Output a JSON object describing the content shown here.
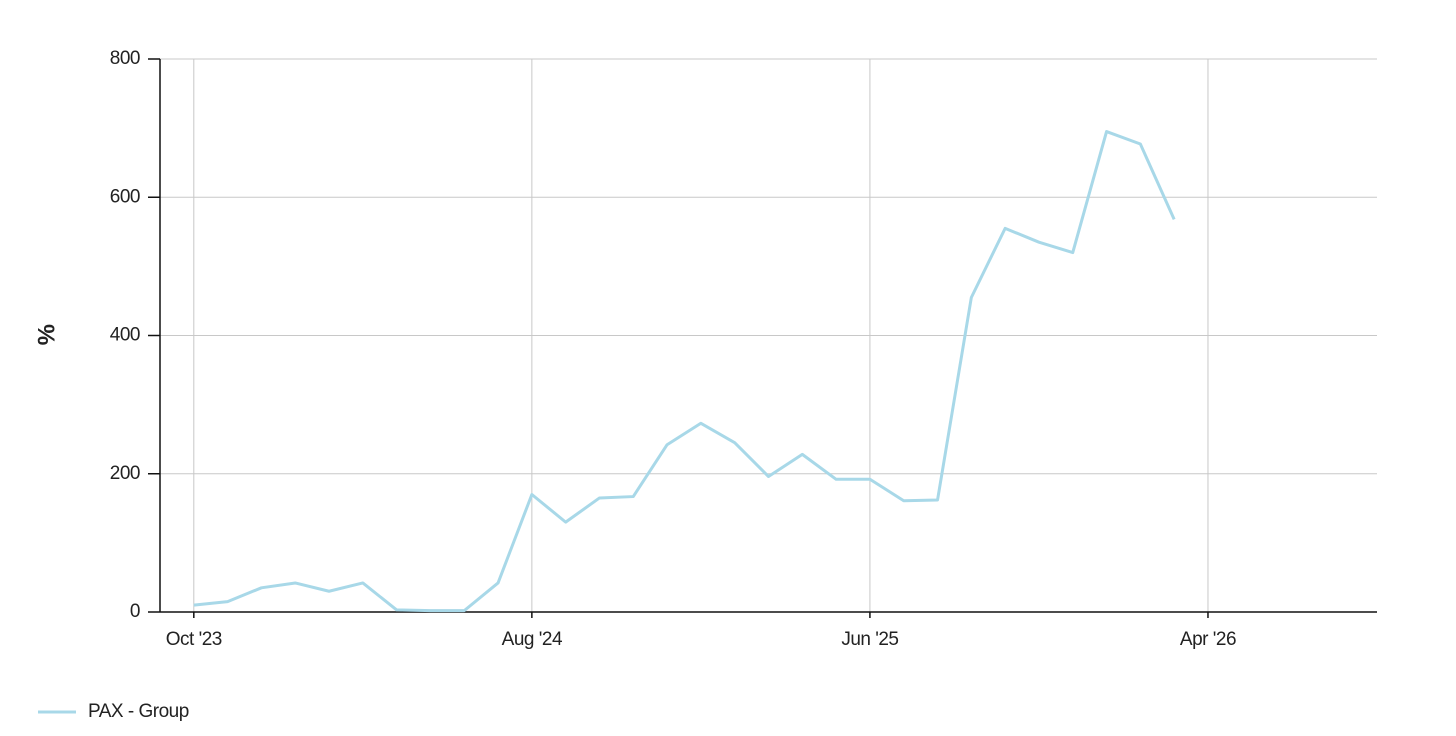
{
  "chart_data": {
    "type": "line",
    "y_label": "%",
    "x": [
      "2023-10",
      "2023-11",
      "2023-12",
      "2024-01",
      "2024-02",
      "2024-03",
      "2024-04",
      "2024-05",
      "2024-06",
      "2024-07",
      "2024-08",
      "2024-09",
      "2024-10",
      "2024-11",
      "2024-12",
      "2025-01",
      "2025-02",
      "2025-03",
      "2025-04",
      "2025-05",
      "2025-06",
      "2025-07",
      "2025-08",
      "2025-09",
      "2025-10",
      "2025-11",
      "2025-12",
      "2026-01",
      "2026-02",
      "2026-03"
    ],
    "series": [
      {
        "name": "PAX - Group",
        "color": "#a8d8e8",
        "values": [
          10,
          15,
          35,
          42,
          30,
          42,
          3,
          2,
          2,
          42,
          170,
          130,
          165,
          167,
          242,
          273,
          245,
          196,
          228,
          192,
          192,
          161,
          162,
          455,
          555,
          535,
          520,
          695,
          677,
          568
        ]
      }
    ],
    "xlim": [
      "2023-09",
      "2026-09"
    ],
    "xticks": [
      {
        "value": "2023-10",
        "label": "Oct '23"
      },
      {
        "value": "2024-08",
        "label": "Aug '24"
      },
      {
        "value": "2025-06",
        "label": "Jun '25"
      },
      {
        "value": "2026-04",
        "label": "Apr '26"
      }
    ],
    "ylim": [
      0,
      800
    ],
    "yticks": [
      0,
      200,
      400,
      600,
      800
    ],
    "grid": true,
    "legend": "bottom-left"
  }
}
